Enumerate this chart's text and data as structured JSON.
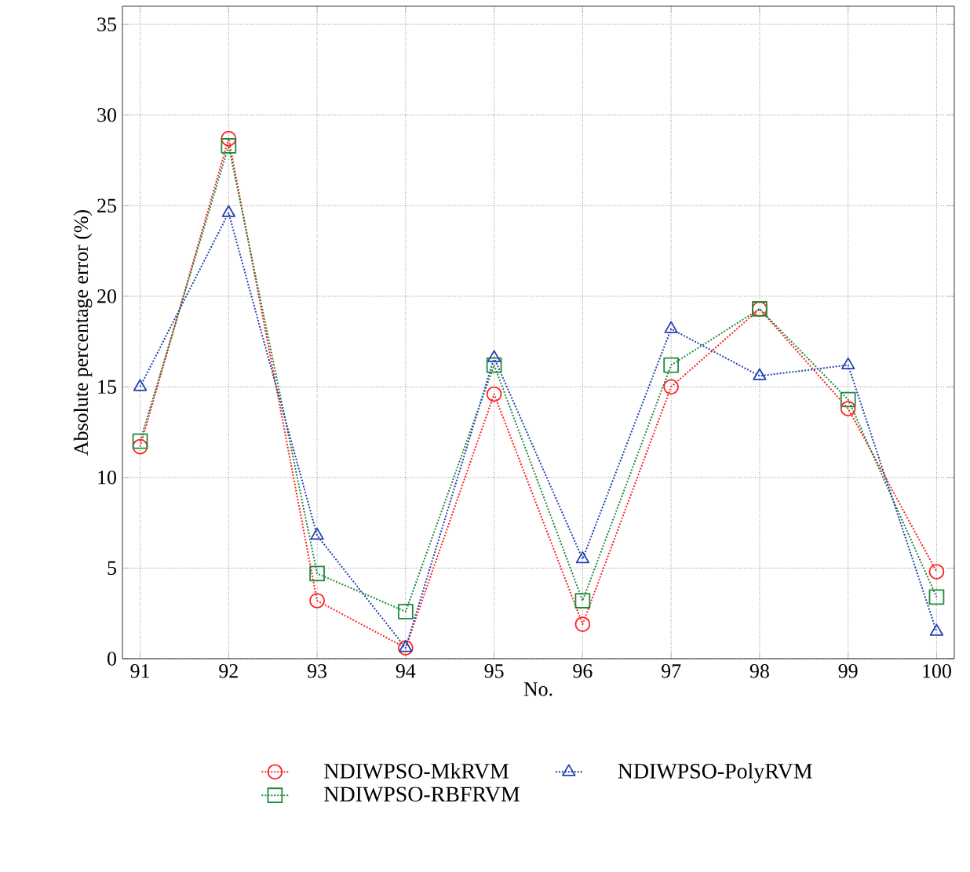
{
  "chart_data": {
    "type": "line",
    "xlabel": "No.",
    "ylabel": "Absolute percentage error (%)",
    "x": [
      91,
      92,
      93,
      94,
      95,
      96,
      97,
      98,
      99,
      100
    ],
    "series": [
      {
        "name": "NDIWPSO-MkRVM",
        "color": "#ff2020",
        "marker": "circle",
        "values": [
          11.7,
          28.7,
          3.2,
          0.6,
          14.6,
          1.9,
          15.0,
          19.3,
          13.8,
          4.8
        ]
      },
      {
        "name": "NDIWPSO-RBFRVM",
        "color": "#1f8a3a",
        "marker": "square",
        "values": [
          12.0,
          28.3,
          4.7,
          2.6,
          16.2,
          3.2,
          16.2,
          19.3,
          14.3,
          3.4
        ]
      },
      {
        "name": "NDIWPSO-PolyRVM",
        "color": "#2040b0",
        "marker": "triangle",
        "values": [
          15.0,
          24.6,
          6.8,
          0.6,
          16.6,
          5.5,
          18.2,
          15.6,
          16.2,
          1.5
        ]
      }
    ],
    "xlim": [
      90.8,
      100.2
    ],
    "ylim": [
      0,
      36
    ],
    "xticks": [
      91,
      92,
      93,
      94,
      95,
      96,
      97,
      98,
      99,
      100
    ],
    "yticks": [
      0,
      5,
      10,
      15,
      20,
      25,
      30,
      35
    ],
    "grid": true,
    "legend": "bottom",
    "line_style": "dotted"
  }
}
